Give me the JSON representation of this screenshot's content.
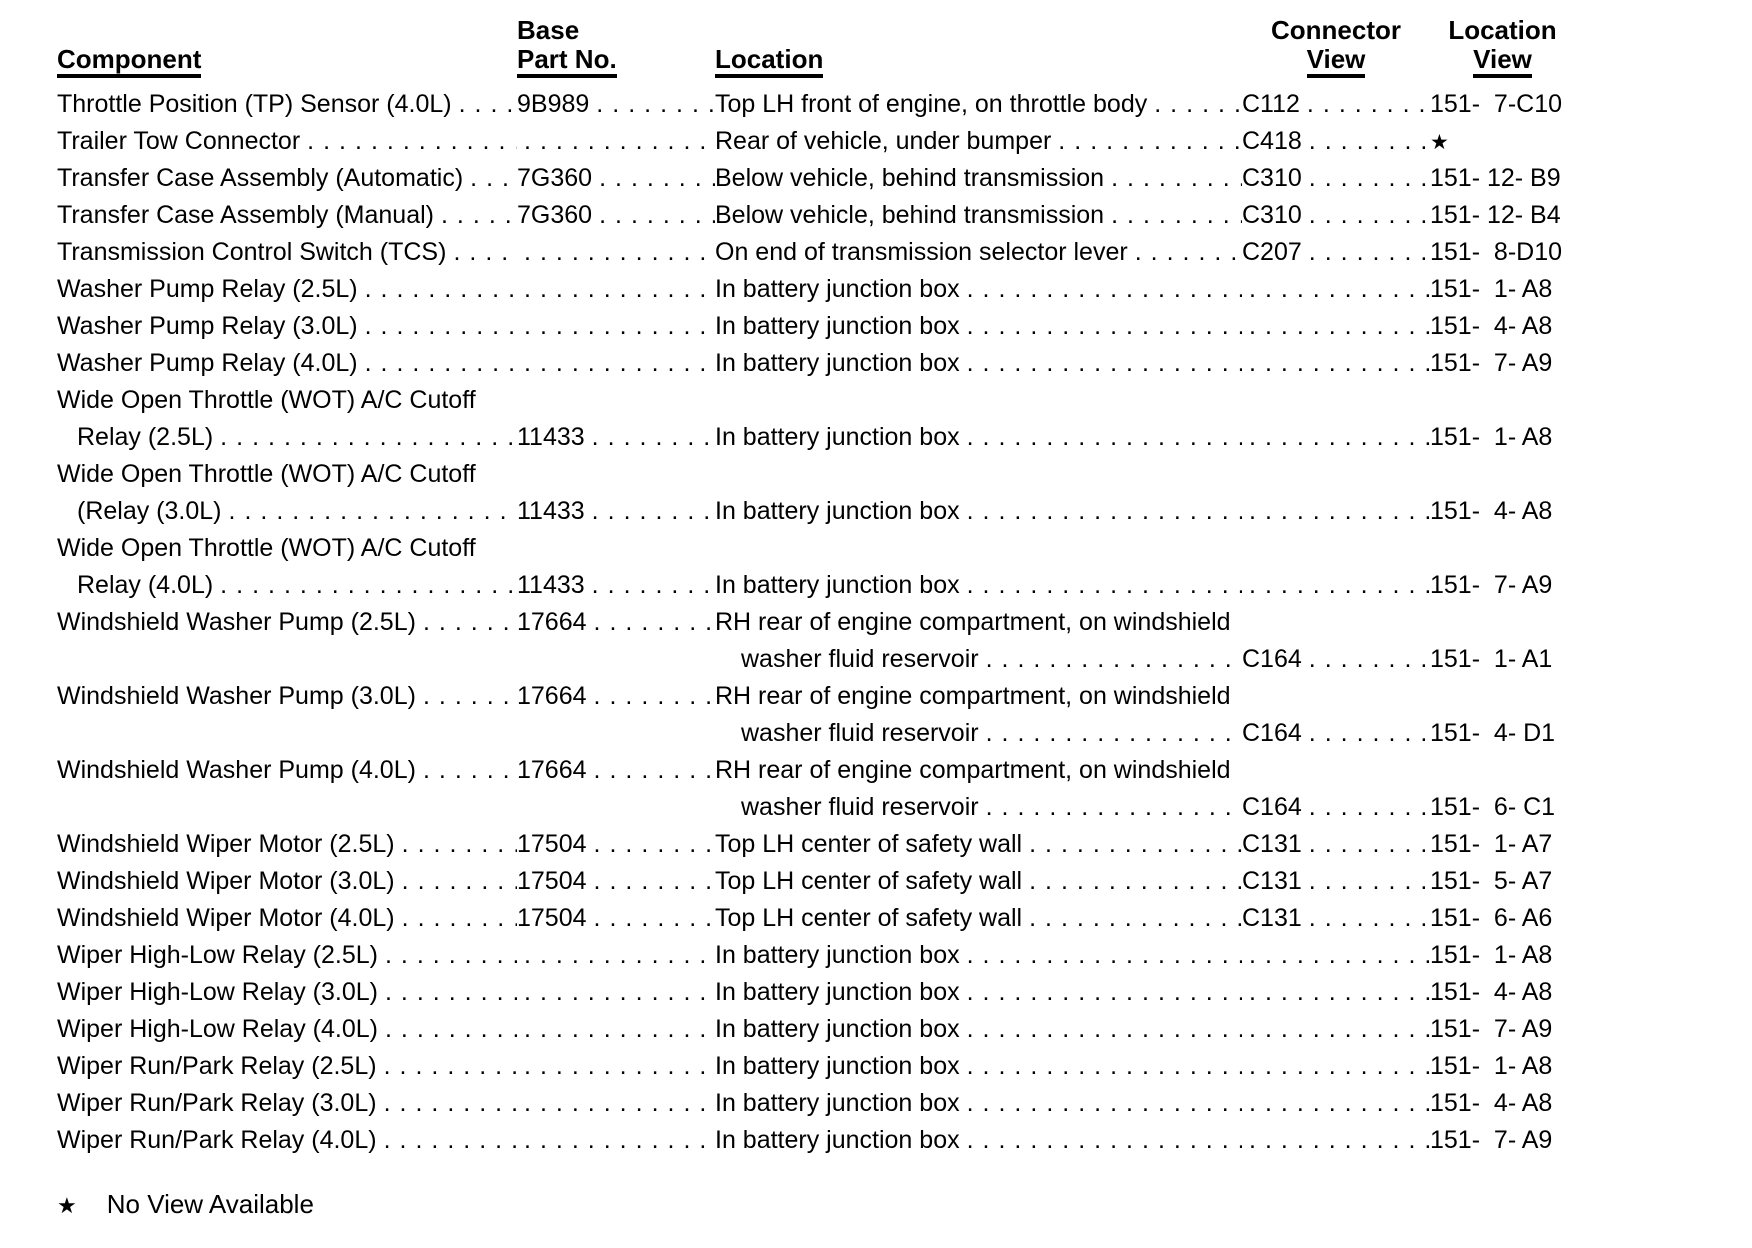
{
  "table": {
    "headers": {
      "component": "Component",
      "base_line1": "Base",
      "base_line2": "Part No.",
      "location": "Location",
      "connector_line1": "Connector",
      "connector_line2": "View",
      "view_line1": "Location",
      "view_line2": "View"
    },
    "rows": [
      {
        "component": "Throttle Position (TP) Sensor (4.0L)",
        "part": "9B989",
        "location": "Top LH front of engine, on throttle body",
        "connector": "C112",
        "view": "151-  7-C10"
      },
      {
        "component": "Trailer Tow Connector",
        "part": "",
        "location": "Rear of vehicle, under bumper",
        "connector": "C418",
        "view": "★"
      },
      {
        "component": "Transfer Case Assembly (Automatic)",
        "part": "7G360",
        "location": "Below vehicle, behind transmission",
        "connector": "C310",
        "view": "151- 12- B9"
      },
      {
        "component": "Transfer Case Assembly (Manual)",
        "part": "7G360",
        "location": "Below vehicle, behind transmission",
        "connector": "C310",
        "view": "151- 12- B4"
      },
      {
        "component": "Transmission Control Switch (TCS)",
        "part": "",
        "location": "On end of transmission selector lever",
        "connector": "C207",
        "view": "151-  8-D10"
      },
      {
        "component": "Washer Pump Relay (2.5L)",
        "part": "",
        "location": "In battery junction box",
        "connector": "",
        "view": "151-  1- A8"
      },
      {
        "component": "Washer Pump Relay (3.0L)",
        "part": "",
        "location": "In battery junction box",
        "connector": "",
        "view": "151-  4- A8"
      },
      {
        "component": "Washer Pump Relay (4.0L)",
        "part": "",
        "location": "In battery junction box",
        "connector": "",
        "view": "151-  7- A9"
      },
      {
        "component": "Wide Open Throttle (WOT) A/C Cutoff",
        "part": "",
        "location": "",
        "connector": "",
        "view": ""
      },
      {
        "component": "Relay (2.5L)",
        "component_indent": true,
        "part": "11433",
        "location": "In battery junction box",
        "connector": "",
        "view": "151-  1- A8"
      },
      {
        "component": "Wide Open Throttle (WOT) A/C Cutoff",
        "part": "",
        "location": "",
        "connector": "",
        "view": ""
      },
      {
        "component": "(Relay (3.0L)",
        "component_indent": true,
        "part": "11433",
        "location": "In battery junction box",
        "connector": "",
        "view": "151-  4- A8"
      },
      {
        "component": "Wide Open Throttle (WOT) A/C Cutoff",
        "part": "",
        "location": "",
        "connector": "",
        "view": ""
      },
      {
        "component": "Relay (4.0L)",
        "component_indent": true,
        "part": "11433",
        "location": "In battery junction box",
        "connector": "",
        "view": "151-  7- A9"
      },
      {
        "component": "Windshield Washer Pump (2.5L)",
        "part": "17664",
        "location": "RH rear of engine compartment, on windshield",
        "connector": "",
        "view": ""
      },
      {
        "component": "",
        "part": "",
        "location": "washer fluid reservoir",
        "location_indent": true,
        "connector": "C164",
        "view": "151-  1- A1"
      },
      {
        "component": "Windshield Washer Pump (3.0L)",
        "part": "17664",
        "location": "RH rear of engine compartment, on windshield",
        "connector": "",
        "view": ""
      },
      {
        "component": "",
        "part": "",
        "location": "washer fluid reservoir",
        "location_indent": true,
        "connector": "C164",
        "view": "151-  4- D1"
      },
      {
        "component": "Windshield Washer Pump (4.0L)",
        "part": "17664",
        "location": "RH rear of engine compartment, on windshield",
        "connector": "",
        "view": ""
      },
      {
        "component": "",
        "part": "",
        "location": "washer fluid reservoir",
        "location_indent": true,
        "connector": "C164",
        "view": "151-  6- C1"
      },
      {
        "component": "Windshield Wiper Motor (2.5L)",
        "part": "17504",
        "location": "Top LH center of safety wall",
        "connector": "C131",
        "view": "151-  1- A7"
      },
      {
        "component": "Windshield Wiper Motor (3.0L)",
        "part": "17504",
        "location": "Top LH center of safety wall",
        "connector": "C131",
        "view": "151-  5- A7"
      },
      {
        "component": "Windshield Wiper Motor (4.0L)",
        "part": "17504",
        "location": "Top LH center of safety wall",
        "connector": "C131",
        "view": "151-  6- A6"
      },
      {
        "component": "Wiper High-Low Relay (2.5L)",
        "part": "",
        "location": "In battery junction box",
        "connector": "",
        "view": "151-  1- A8"
      },
      {
        "component": "Wiper High-Low Relay (3.0L)",
        "part": "",
        "location": "In battery junction box",
        "connector": "",
        "view": "151-  4- A8"
      },
      {
        "component": "Wiper High-Low Relay (4.0L)",
        "part": "",
        "location": "In battery junction box",
        "connector": "",
        "view": "151-  7- A9"
      },
      {
        "component": "Wiper Run/Park Relay (2.5L)",
        "part": "",
        "location": "In battery junction box",
        "connector": "",
        "view": "151-  1- A8"
      },
      {
        "component": "Wiper Run/Park Relay (3.0L)",
        "part": "",
        "location": "In battery junction box",
        "connector": "",
        "view": "151-  4- A8"
      },
      {
        "component": "Wiper Run/Park Relay (4.0L)",
        "part": "",
        "location": "In battery junction box",
        "connector": "",
        "view": "151-  7- A9"
      }
    ]
  },
  "footnote": {
    "symbol": "★",
    "text": "No View Available"
  }
}
